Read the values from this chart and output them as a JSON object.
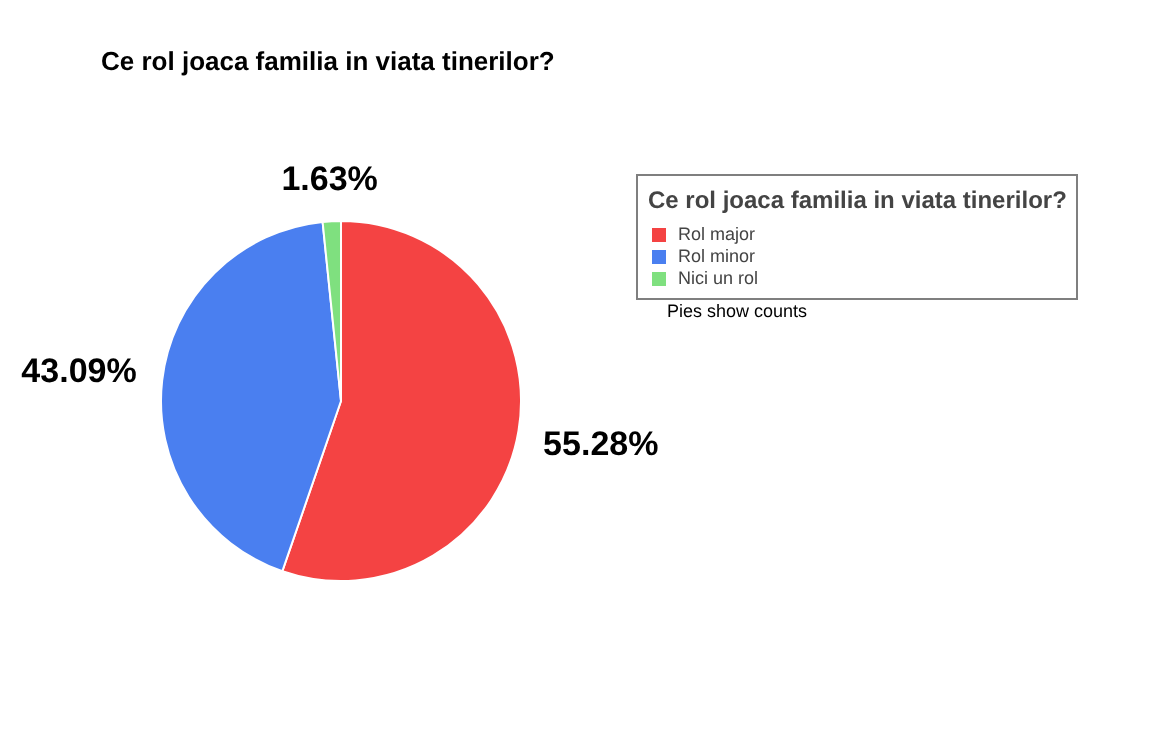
{
  "chart_data": {
    "type": "pie",
    "title": "Ce rol joaca familia in viata tinerilor?",
    "legend_title": "Ce rol joaca familia in viata tinerilor?",
    "categories": [
      "Rol major",
      "Rol minor",
      "Nici un rol"
    ],
    "values": [
      55.28,
      43.09,
      1.63
    ],
    "colors": [
      "#f44343",
      "#4a7ff0",
      "#7fe07f"
    ],
    "value_labels": [
      "55.28%",
      "43.09%",
      "1.63%"
    ],
    "annotations": [
      "Pies show counts"
    ],
    "legend": "right"
  }
}
